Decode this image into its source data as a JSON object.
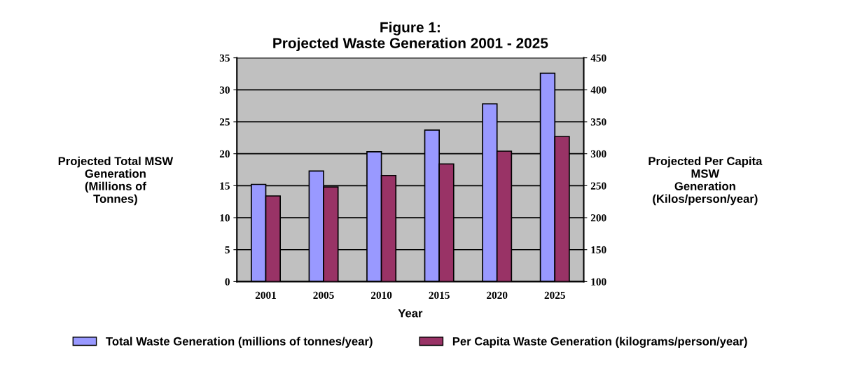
{
  "chart_data": {
    "type": "bar",
    "title": "Figure 1:\nProjected Waste Generation 2001 - 2025",
    "categories": [
      "2001",
      "2005",
      "2010",
      "2015",
      "2020",
      "2025"
    ],
    "series": [
      {
        "name": "Total Waste Generation (millions of tonnes/year)",
        "color": "#9999ff",
        "values": [
          15.2,
          17.3,
          20.3,
          23.7,
          27.8,
          32.6
        ]
      },
      {
        "name": "Per Capita Waste Generation (kilograms/person/year)",
        "color": "#993366",
        "axis": "y2",
        "values": [
          234,
          248,
          266,
          284,
          304,
          327
        ]
      }
    ],
    "xlabel": "Year",
    "ylabel": "Projected Total MSW\nGeneration\n(Millions of\nTonnes)",
    "y2label": "Projected Per Capita\nMSW\nGeneration\n(Kilos/person/year)",
    "ylim": [
      0,
      35
    ],
    "yticks": [
      0,
      5,
      10,
      15,
      20,
      25,
      30,
      35
    ],
    "y2lim": [
      100,
      450
    ],
    "y2ticks": [
      100,
      150,
      200,
      250,
      300,
      350,
      400,
      450
    ],
    "grid": "y",
    "legend": "bottom"
  }
}
